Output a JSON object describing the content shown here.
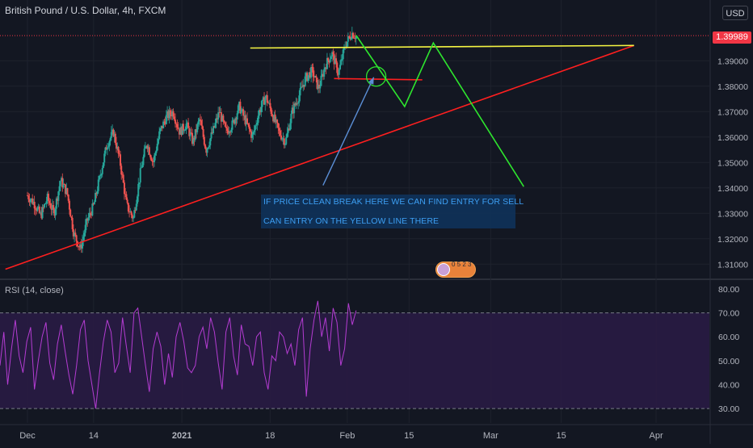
{
  "header": {
    "title": "British Pound / U.S. Dollar, 4h, FXCM",
    "currency": "USD",
    "last_price": "1.39989"
  },
  "annotation": {
    "line1": "IF PRICE CLEAN BREAK HERE WE CAN FIND ENTRY FOR SELL",
    "line2": "CAN ENTRY ON THE YELLOW LINE THERE"
  },
  "badge": {
    "text": "0 5  2  3"
  },
  "colors": {
    "background": "#131722",
    "up_candle": "#26a69a",
    "down_candle": "#ef5350",
    "support_line": "#ff1f1f",
    "resistance_line": "#f5f542",
    "projection": "#2ee62e",
    "arrow": "#5b8fd6",
    "rsi_line": "#b43cd2",
    "rsi_band": "#2a1b45"
  },
  "chart_data": [
    {
      "type": "line",
      "title": "British Pound / U.S. Dollar, 4h, FXCM",
      "x_labels": [
        "Dec",
        "14",
        "2021",
        "18",
        "Feb",
        "15",
        "Mar",
        "15",
        "Apr"
      ],
      "y_ticks": [
        "1.31000",
        "1.32000",
        "1.33000",
        "1.34000",
        "1.35000",
        "1.36000",
        "1.37000",
        "1.38000",
        "1.39000"
      ],
      "ylim": [
        1.305,
        1.405
      ],
      "last_value": 1.39989,
      "price_path": [
        [
          0,
          1.337
        ],
        [
          0.3,
          1.334
        ],
        [
          0.6,
          1.329
        ],
        [
          0.9,
          1.336
        ],
        [
          1.2,
          1.33
        ],
        [
          1.5,
          1.343
        ],
        [
          1.8,
          1.338
        ],
        [
          2.1,
          1.322
        ],
        [
          2.4,
          1.316
        ],
        [
          2.7,
          1.327
        ],
        [
          3.0,
          1.333
        ],
        [
          3.3,
          1.345
        ],
        [
          3.6,
          1.357
        ],
        [
          3.9,
          1.362
        ],
        [
          4.2,
          1.35
        ],
        [
          4.5,
          1.333
        ],
        [
          4.8,
          1.328
        ],
        [
          5.1,
          1.345
        ],
        [
          5.4,
          1.358
        ],
        [
          5.7,
          1.35
        ],
        [
          6.0,
          1.362
        ],
        [
          6.3,
          1.368
        ],
        [
          6.6,
          1.37
        ],
        [
          6.9,
          1.362
        ],
        [
          7.2,
          1.365
        ],
        [
          7.5,
          1.358
        ],
        [
          7.8,
          1.367
        ],
        [
          8.1,
          1.355
        ],
        [
          8.4,
          1.362
        ],
        [
          8.7,
          1.37
        ],
        [
          9.0,
          1.362
        ],
        [
          9.3,
          1.365
        ],
        [
          9.6,
          1.372
        ],
        [
          9.9,
          1.366
        ],
        [
          10.2,
          1.36
        ],
        [
          10.5,
          1.37
        ],
        [
          10.8,
          1.376
        ],
        [
          11.1,
          1.369
        ],
        [
          11.4,
          1.362
        ],
        [
          11.7,
          1.358
        ],
        [
          12.0,
          1.37
        ],
        [
          12.3,
          1.376
        ],
        [
          12.6,
          1.383
        ],
        [
          12.9,
          1.386
        ],
        [
          13.2,
          1.379
        ],
        [
          13.5,
          1.388
        ],
        [
          13.8,
          1.393
        ],
        [
          14.1,
          1.385
        ],
        [
          14.4,
          1.396
        ],
        [
          14.7,
          1.401
        ],
        [
          14.9,
          1.3995
        ]
      ],
      "support_line": [
        [
          -1,
          1.308
        ],
        [
          27.5,
          1.396
        ]
      ],
      "resistance_line": [
        [
          10.1,
          1.395
        ],
        [
          27.5,
          1.396
        ]
      ],
      "box_top_line": [
        [
          13.9,
          1.383
        ],
        [
          17.9,
          1.3825
        ]
      ],
      "projection_path": [
        [
          14.9,
          1.4
        ],
        [
          17.1,
          1.372
        ],
        [
          18.4,
          1.397
        ],
        [
          22.5,
          1.3405
        ]
      ],
      "arrow": {
        "from": [
          13.4,
          1.341
        ],
        "to": [
          15.7,
          1.3835
        ]
      }
    },
    {
      "type": "line",
      "title": "RSI (14, close)",
      "y_ticks": [
        "30.00",
        "40.00",
        "50.00",
        "60.00",
        "70.00",
        "80.00"
      ],
      "ylim": [
        26,
        82
      ],
      "band": [
        30,
        70
      ],
      "values": [
        48,
        62,
        40,
        55,
        67,
        52,
        45,
        58,
        64,
        38,
        50,
        60,
        66,
        49,
        42,
        57,
        65,
        54,
        44,
        36,
        48,
        63,
        67,
        50,
        40,
        30,
        45,
        58,
        67,
        62,
        45,
        49,
        68,
        56,
        45,
        70,
        72,
        60,
        48,
        37,
        55,
        62,
        56,
        40,
        53,
        43,
        60,
        66,
        58,
        47,
        45,
        48,
        60,
        64,
        55,
        68,
        62,
        49,
        38,
        62,
        68,
        52,
        44,
        65,
        57,
        56,
        48,
        60,
        62,
        45,
        38,
        52,
        50,
        62,
        60,
        53,
        57,
        48,
        63,
        68,
        35,
        55,
        67,
        75,
        60,
        68,
        54,
        72,
        66,
        48,
        55,
        74,
        65,
        71
      ]
    }
  ]
}
